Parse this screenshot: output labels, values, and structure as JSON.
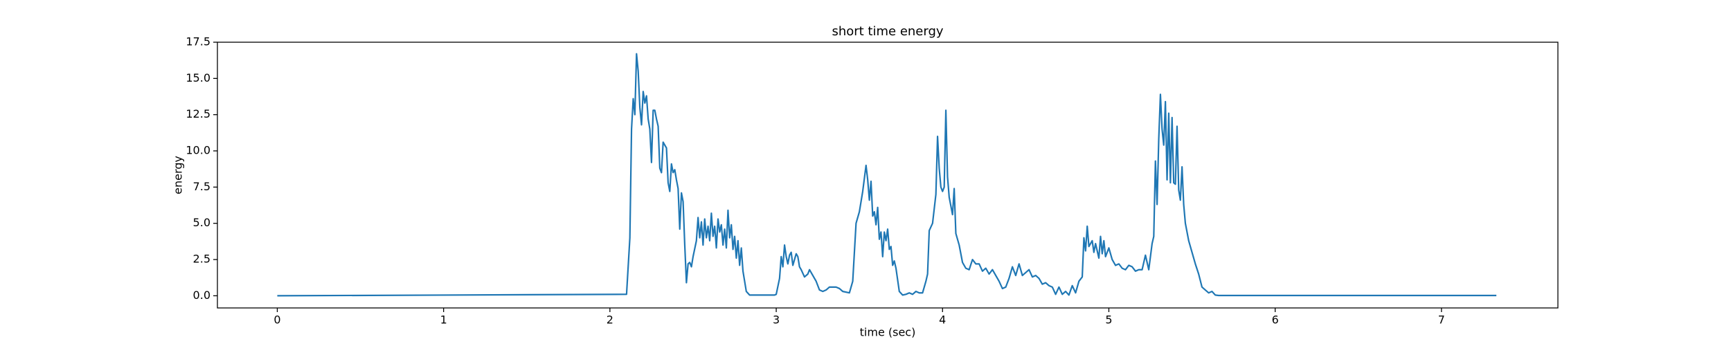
{
  "chart_data": {
    "type": "line",
    "title": "short time energy",
    "x_label": "time (sec)",
    "y_label": "energy",
    "x": [
      0,
      2.1,
      2.12,
      2.13,
      2.14,
      2.15,
      2.16,
      2.17,
      2.18,
      2.19,
      2.2,
      2.21,
      2.22,
      2.23,
      2.24,
      2.25,
      2.26,
      2.27,
      2.28,
      2.29,
      2.3,
      2.31,
      2.32,
      2.33,
      2.34,
      2.35,
      2.36,
      2.37,
      2.38,
      2.39,
      2.4,
      2.41,
      2.42,
      2.43,
      2.44,
      2.45,
      2.46,
      2.47,
      2.48,
      2.49,
      2.5,
      2.52,
      2.53,
      2.54,
      2.55,
      2.56,
      2.57,
      2.58,
      2.59,
      2.6,
      2.61,
      2.62,
      2.63,
      2.64,
      2.65,
      2.66,
      2.67,
      2.68,
      2.69,
      2.7,
      2.71,
      2.72,
      2.73,
      2.74,
      2.75,
      2.76,
      2.77,
      2.78,
      2.79,
      2.8,
      2.81,
      2.82,
      2.84,
      2.88,
      2.94,
      2.99,
      3.0,
      3.02,
      3.03,
      3.04,
      3.05,
      3.06,
      3.07,
      3.08,
      3.09,
      3.1,
      3.12,
      3.13,
      3.14,
      3.15,
      3.17,
      3.19,
      3.2,
      3.22,
      3.24,
      3.26,
      3.28,
      3.3,
      3.32,
      3.36,
      3.38,
      3.4,
      3.44,
      3.46,
      3.48,
      3.5,
      3.52,
      3.54,
      3.55,
      3.56,
      3.57,
      3.58,
      3.59,
      3.6,
      3.61,
      3.62,
      3.63,
      3.64,
      3.65,
      3.66,
      3.67,
      3.68,
      3.69,
      3.7,
      3.71,
      3.72,
      3.74,
      3.76,
      3.78,
      3.8,
      3.82,
      3.84,
      3.86,
      3.88,
      3.9,
      3.91,
      3.92,
      3.94,
      3.96,
      3.97,
      3.98,
      3.99,
      4.0,
      4.01,
      4.02,
      4.03,
      4.04,
      4.05,
      4.06,
      4.07,
      4.08,
      4.1,
      4.12,
      4.14,
      4.16,
      4.18,
      4.2,
      4.22,
      4.24,
      4.26,
      4.28,
      4.3,
      4.32,
      4.34,
      4.36,
      4.38,
      4.4,
      4.42,
      4.44,
      4.46,
      4.48,
      4.5,
      4.52,
      4.54,
      4.56,
      4.58,
      4.6,
      4.62,
      4.64,
      4.66,
      4.68,
      4.7,
      4.72,
      4.74,
      4.76,
      4.78,
      4.8,
      4.82,
      4.84,
      4.85,
      4.86,
      4.87,
      4.88,
      4.9,
      4.91,
      4.92,
      4.94,
      4.95,
      4.96,
      4.97,
      4.98,
      5.0,
      5.02,
      5.04,
      5.06,
      5.08,
      5.1,
      5.12,
      5.14,
      5.16,
      5.18,
      5.2,
      5.22,
      5.24,
      5.26,
      5.27,
      5.28,
      5.29,
      5.3,
      5.31,
      5.32,
      5.33,
      5.34,
      5.35,
      5.36,
      5.37,
      5.38,
      5.39,
      5.4,
      5.41,
      5.42,
      5.43,
      5.44,
      5.45,
      5.46,
      5.48,
      5.5,
      5.52,
      5.54,
      5.56,
      5.58,
      5.6,
      5.62,
      5.64,
      5.66,
      7.33
    ],
    "values": [
      0,
      0.1,
      4,
      11.5,
      13.6,
      12.5,
      16.7,
      15.5,
      13,
      11.8,
      14.1,
      13.3,
      13.8,
      12.2,
      11.5,
      9.2,
      12.8,
      12.8,
      12.2,
      11.7,
      8.8,
      8.5,
      10.6,
      10.4,
      10.2,
      7.8,
      7.2,
      9.1,
      8.5,
      8.7,
      8,
      7.4,
      4.6,
      7.1,
      6.5,
      3.5,
      0.9,
      2.2,
      2.3,
      2.0,
      2.7,
      3.8,
      5.4,
      4.0,
      5.1,
      3.5,
      5.3,
      4.0,
      4.8,
      3.8,
      5.7,
      4.1,
      4.8,
      3.3,
      5.3,
      4.4,
      4.9,
      3.5,
      4.6,
      3.3,
      5.9,
      4.0,
      4.9,
      3.2,
      4.1,
      2.6,
      3.8,
      2.1,
      3.3,
      1.7,
      1.0,
      0.3,
      0.05,
      0.05,
      0.05,
      0.05,
      0.1,
      1.2,
      2.7,
      2.0,
      3.5,
      2.7,
      2.2,
      2.8,
      3.0,
      2.1,
      2.9,
      2.7,
      2.0,
      1.8,
      1.3,
      1.5,
      1.8,
      1.4,
      1.0,
      0.4,
      0.3,
      0.4,
      0.6,
      0.6,
      0.5,
      0.3,
      0.2,
      1.0,
      5.0,
      5.8,
      7.2,
      9.0,
      8.0,
      6.6,
      7.9,
      5.5,
      5.8,
      4.9,
      6.1,
      3.9,
      4.4,
      2.7,
      4.4,
      3.8,
      4.6,
      3.2,
      3.4,
      2.1,
      2.4,
      1.9,
      0.3,
      0.05,
      0.1,
      0.2,
      0.1,
      0.3,
      0.2,
      0.2,
      1.0,
      1.5,
      4.5,
      5.0,
      7.0,
      11.0,
      8.8,
      7.5,
      7.2,
      7.5,
      12.8,
      8.2,
      6.8,
      6.2,
      5.6,
      7.4,
      4.3,
      3.5,
      2.3,
      1.9,
      1.8,
      2.5,
      2.2,
      2.2,
      1.7,
      1.9,
      1.5,
      1.8,
      1.4,
      1.0,
      0.5,
      0.6,
      1.2,
      2.0,
      1.4,
      2.2,
      1.4,
      1.6,
      1.8,
      1.3,
      1.4,
      1.2,
      0.8,
      0.9,
      0.7,
      0.6,
      0.1,
      0.6,
      0.1,
      0.3,
      0.05,
      0.7,
      0.2,
      1.0,
      1.3,
      4.0,
      3.1,
      4.8,
      3.4,
      3.8,
      3.0,
      3.6,
      2.6,
      4.1,
      2.9,
      3.8,
      2.7,
      3.3,
      2.5,
      2.1,
      2.2,
      1.9,
      1.8,
      2.1,
      2.0,
      1.7,
      1.8,
      1.8,
      2.8,
      1.8,
      3.6,
      4.1,
      9.3,
      6.3,
      10.8,
      13.9,
      11.5,
      10.4,
      13.4,
      8.0,
      12.6,
      7.8,
      12.3,
      7.8,
      7.7,
      11.7,
      7.3,
      6.6,
      8.9,
      6.3,
      5.0,
      3.8,
      3.0,
      2.2,
      1.5,
      0.6,
      0.4,
      0.2,
      0.3,
      0.05,
      0.02,
      0.02
    ],
    "color": "#1f77b4",
    "xlim": [
      -0.36,
      7.7
    ],
    "xticks": [
      0,
      1,
      2,
      3,
      4,
      5,
      6,
      7
    ],
    "ylim": [
      -0.84,
      17.5
    ],
    "yticks": [
      {
        "value": 0,
        "label": "0.0"
      },
      2.5,
      {
        "value": 5,
        "label": "5.0"
      },
      7.5,
      {
        "value": 10,
        "label": "10.0"
      },
      12.5,
      {
        "value": 15,
        "label": "15.0"
      },
      17.5
    ],
    "grid": false
  }
}
